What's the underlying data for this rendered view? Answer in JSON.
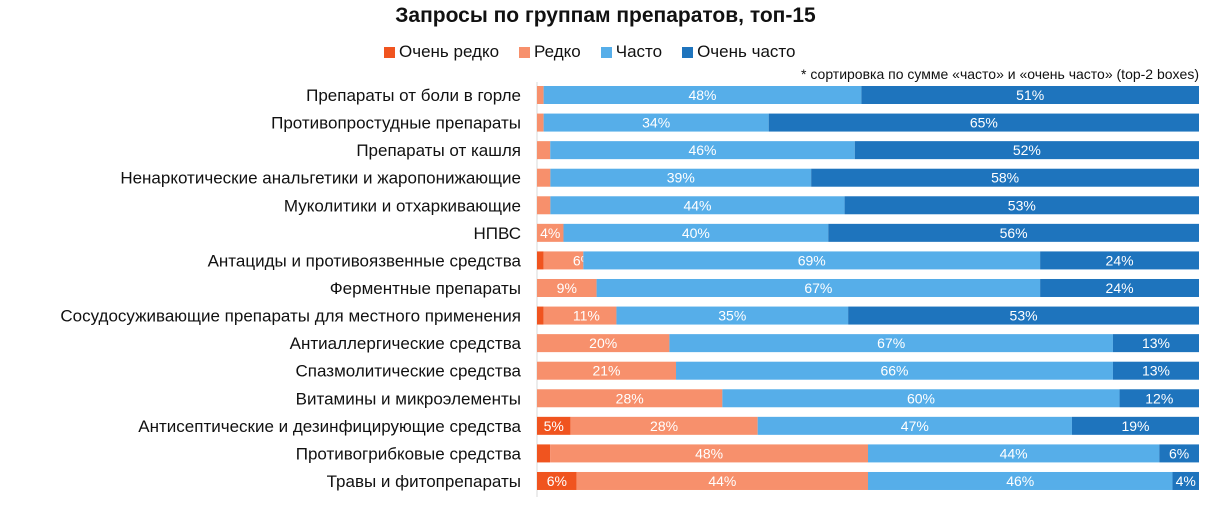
{
  "chart_data": {
    "type": "bar",
    "orientation": "horizontal",
    "stacked": "100%",
    "title": "Запросы по группам препаратов, топ-15",
    "note": "* сортировка по сумме «часто» и «очень часто» (top-2 boxes)",
    "legend_position": "top",
    "grid": false,
    "categories": [
      "Препараты от боли в горле",
      "Противопростудные препараты",
      "Препараты от кашля",
      "Ненаркотические анальгетики и жаропонижающие",
      "Муколитики и отхаркивающие",
      "НПВС",
      "Антациды и противоязвенные средства",
      "Ферментные препараты",
      "Сосудосуживающие препараты для местного применения",
      "Антиаллергические средства",
      "Спазмолитические средства",
      "Витамины и микроэлементы",
      "Антисептические и дезинфицирующие средства",
      "Противогрибковые средства",
      "Травы и фитопрепараты"
    ],
    "series": [
      {
        "name": "Очень редко",
        "color": "#f0541f",
        "values": [
          0,
          0,
          0,
          0,
          0,
          0,
          1,
          0,
          1,
          0,
          0,
          0,
          5,
          2,
          6
        ]
      },
      {
        "name": "Редко",
        "color": "#f7906c",
        "values": [
          1,
          1,
          2,
          2,
          2,
          4,
          6,
          9,
          11,
          20,
          21,
          28,
          28,
          48,
          44
        ]
      },
      {
        "name": "Часто",
        "color": "#56aee9",
        "values": [
          48,
          34,
          46,
          39,
          44,
          40,
          69,
          67,
          35,
          67,
          66,
          60,
          47,
          44,
          46
        ]
      },
      {
        "name": "Очень часто",
        "color": "#1e74bd",
        "values": [
          51,
          65,
          52,
          58,
          53,
          56,
          24,
          24,
          53,
          13,
          13,
          12,
          19,
          6,
          4
        ]
      }
    ]
  }
}
